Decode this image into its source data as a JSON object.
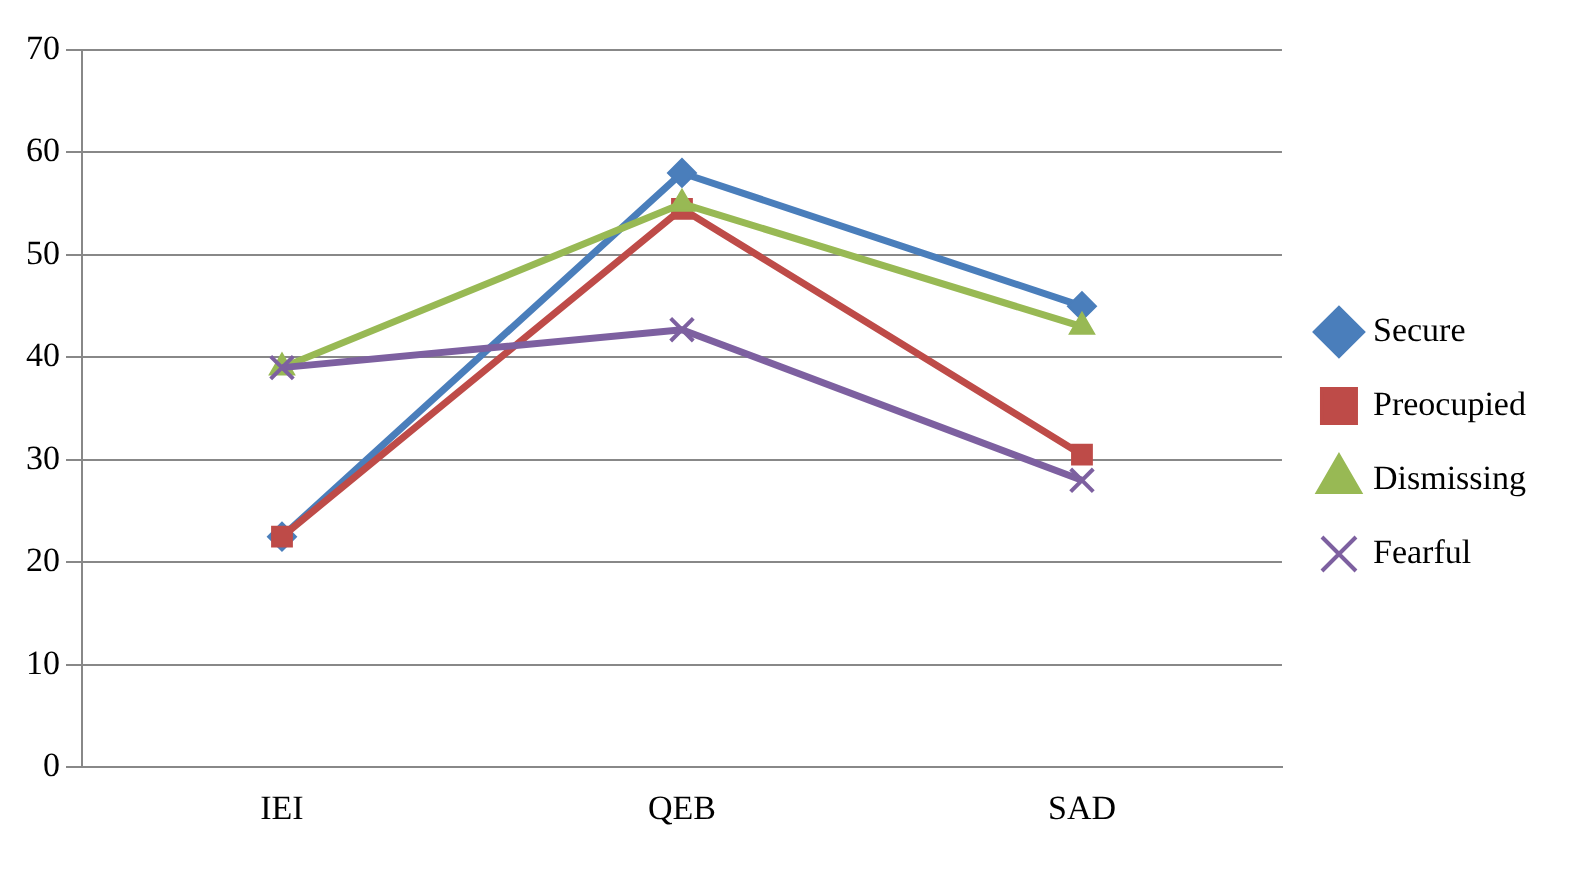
{
  "chart_data": {
    "type": "line",
    "categories": [
      "IEI",
      "QEB",
      "SAD"
    ],
    "series": [
      {
        "name": "Secure",
        "color": "#4a7ebb",
        "marker": "diamond",
        "values": [
          22.5,
          58,
          45
        ]
      },
      {
        "name": "Preocupied",
        "color": "#be4b48",
        "marker": "square",
        "values": [
          22.5,
          54.5,
          30.5
        ]
      },
      {
        "name": "Dismissing",
        "color": "#98b954",
        "marker": "triangle",
        "values": [
          39,
          55,
          43
        ]
      },
      {
        "name": "Fearful",
        "color": "#7d60a0",
        "marker": "cross",
        "values": [
          39,
          42.7,
          28
        ]
      }
    ],
    "ylim": [
      0,
      70
    ],
    "yticks": [
      0,
      10,
      20,
      30,
      40,
      50,
      60,
      70
    ],
    "grid": "y",
    "legend": "right",
    "line_style": "solid"
  }
}
